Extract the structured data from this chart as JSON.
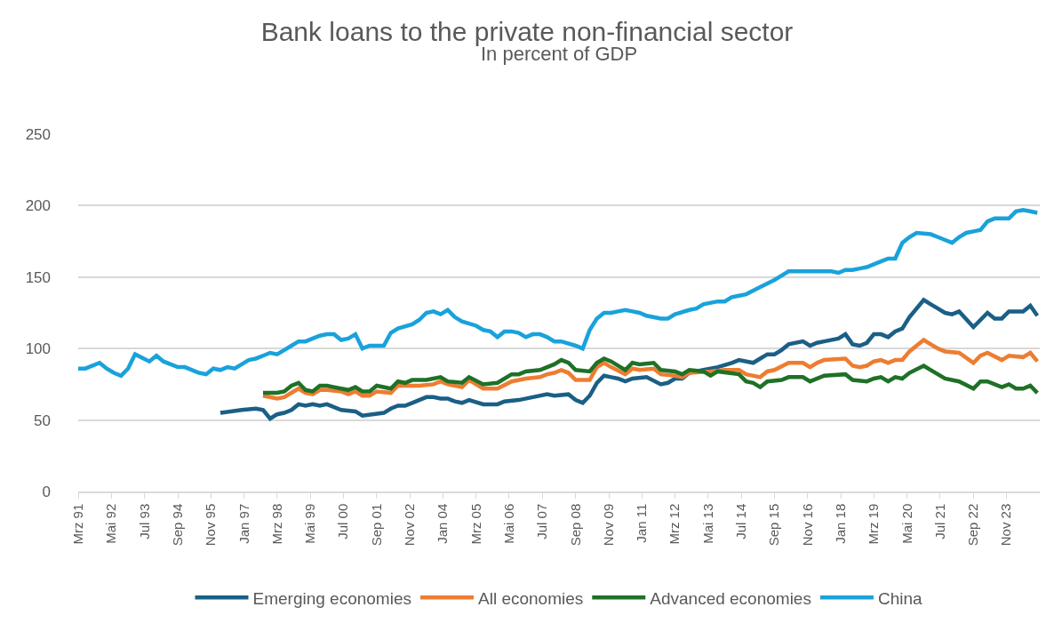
{
  "chart_data": {
    "type": "line",
    "title": "Bank loans to the private non-financial sector",
    "subtitle": "In percent of GDP",
    "xlim": [
      "1991-03",
      "2025-01"
    ],
    "xticks": [
      {
        "value": "1991-03",
        "label": "Mrz 91"
      },
      {
        "value": "1992-05",
        "label": "Mai 92"
      },
      {
        "value": "1993-07",
        "label": "Jul 93"
      },
      {
        "value": "1994-09",
        "label": "Sep 94"
      },
      {
        "value": "1995-11",
        "label": "Nov 95"
      },
      {
        "value": "1997-01",
        "label": "Jan 97"
      },
      {
        "value": "1998-03",
        "label": "Mrz 98"
      },
      {
        "value": "1999-05",
        "label": "Mai 99"
      },
      {
        "value": "2000-07",
        "label": "Jul 00"
      },
      {
        "value": "2001-09",
        "label": "Sep 01"
      },
      {
        "value": "2002-11",
        "label": "Nov 02"
      },
      {
        "value": "2004-01",
        "label": "Jan 04"
      },
      {
        "value": "2005-03",
        "label": "Mrz 05"
      },
      {
        "value": "2006-05",
        "label": "Mai 06"
      },
      {
        "value": "2007-07",
        "label": "Jul 07"
      },
      {
        "value": "2008-09",
        "label": "Sep 08"
      },
      {
        "value": "2009-11",
        "label": "Nov 09"
      },
      {
        "value": "2011-01",
        "label": "Jan 11"
      },
      {
        "value": "2012-03",
        "label": "Mrz 12"
      },
      {
        "value": "2013-05",
        "label": "Mai 13"
      },
      {
        "value": "2014-07",
        "label": "Jul 14"
      },
      {
        "value": "2015-09",
        "label": "Sep 15"
      },
      {
        "value": "2016-11",
        "label": "Nov 16"
      },
      {
        "value": "2018-01",
        "label": "Jan 18"
      },
      {
        "value": "2019-03",
        "label": "Mrz 19"
      },
      {
        "value": "2020-05",
        "label": "Mai 20"
      },
      {
        "value": "2021-07",
        "label": "Jul 21"
      },
      {
        "value": "2022-09",
        "label": "Sep 22"
      },
      {
        "value": "2023-11",
        "label": "Nov 23"
      }
    ],
    "ylim": [
      0,
      250
    ],
    "yticks": [
      0,
      50,
      100,
      150,
      200,
      250
    ],
    "grid": "y",
    "legend": "bottom",
    "marker": "none",
    "line_style": "solid",
    "series": [
      {
        "name": "Emerging economies",
        "color": "#1a5f86",
        "x": [
          "1996-03",
          "1996-12",
          "1997-06",
          "1997-09",
          "1997-12",
          "1998-03",
          "1998-06",
          "1998-09",
          "1998-12",
          "1999-03",
          "1999-06",
          "1999-09",
          "1999-12",
          "2000-06",
          "2000-12",
          "2001-03",
          "2001-12",
          "2002-03",
          "2002-06",
          "2002-09",
          "2002-12",
          "2003-03",
          "2003-06",
          "2003-09",
          "2003-12",
          "2004-03",
          "2004-06",
          "2004-09",
          "2004-12",
          "2005-06",
          "2005-12",
          "2006-03",
          "2006-09",
          "2007-03",
          "2007-09",
          "2007-12",
          "2008-06",
          "2008-09",
          "2008-12",
          "2009-03",
          "2009-06",
          "2009-09",
          "2009-12",
          "2010-03",
          "2010-06",
          "2010-09",
          "2011-03",
          "2011-09",
          "2011-12",
          "2012-03",
          "2012-06",
          "2012-09",
          "2013-03",
          "2013-06",
          "2013-09",
          "2014-03",
          "2014-06",
          "2014-12",
          "2015-03",
          "2015-06",
          "2015-09",
          "2015-12",
          "2016-03",
          "2016-09",
          "2016-12",
          "2017-03",
          "2017-06",
          "2017-12",
          "2018-03",
          "2018-06",
          "2018-09",
          "2018-12",
          "2019-03",
          "2019-06",
          "2019-09",
          "2019-12",
          "2020-03",
          "2020-06",
          "2020-12",
          "2021-03",
          "2021-06",
          "2021-09",
          "2021-12",
          "2022-03",
          "2022-09",
          "2023-03",
          "2023-06",
          "2023-09",
          "2023-12",
          "2024-06",
          "2024-09",
          "2024-12"
        ],
        "values": [
          55,
          57,
          58,
          57,
          51,
          54,
          55,
          57,
          61,
          60,
          61,
          60,
          61,
          57,
          56,
          53,
          55,
          58,
          60,
          60,
          62,
          64,
          66,
          66,
          65,
          65,
          63,
          62,
          64,
          61,
          61,
          63,
          64,
          66,
          68,
          67,
          68,
          64,
          62,
          67,
          76,
          81,
          80,
          79,
          77,
          79,
          80,
          75,
          76,
          79,
          79,
          83,
          85,
          86,
          87,
          90,
          92,
          90,
          93,
          96,
          96,
          99,
          103,
          105,
          102,
          104,
          105,
          107,
          110,
          103,
          102,
          104,
          110,
          110,
          108,
          112,
          114,
          122,
          134,
          131,
          128,
          125,
          124,
          126,
          115,
          125,
          121,
          121,
          126,
          126,
          130,
          123
        ]
      },
      {
        "name": "All economies",
        "color": "#ed7d31",
        "x": [
          "1997-09",
          "1998-03",
          "1998-06",
          "1998-09",
          "1998-12",
          "1999-03",
          "1999-06",
          "1999-09",
          "1999-12",
          "2000-06",
          "2000-09",
          "2000-12",
          "2001-03",
          "2001-06",
          "2001-09",
          "2002-03",
          "2002-06",
          "2002-09",
          "2003-03",
          "2003-09",
          "2003-12",
          "2004-03",
          "2004-09",
          "2004-12",
          "2005-06",
          "2005-12",
          "2006-06",
          "2006-12",
          "2007-06",
          "2007-09",
          "2007-12",
          "2008-03",
          "2008-06",
          "2008-09",
          "2009-03",
          "2009-06",
          "2009-09",
          "2009-12",
          "2010-06",
          "2010-09",
          "2010-12",
          "2011-06",
          "2011-09",
          "2012-03",
          "2012-06",
          "2012-09",
          "2013-06",
          "2013-12",
          "2014-06",
          "2014-09",
          "2015-03",
          "2015-06",
          "2015-09",
          "2016-03",
          "2016-09",
          "2016-12",
          "2017-03",
          "2017-06",
          "2018-03",
          "2018-06",
          "2018-09",
          "2018-12",
          "2019-03",
          "2019-06",
          "2019-09",
          "2019-12",
          "2020-03",
          "2020-06",
          "2020-12",
          "2021-03",
          "2021-06",
          "2021-09",
          "2022-03",
          "2022-09",
          "2022-12",
          "2023-03",
          "2023-09",
          "2023-12",
          "2024-06",
          "2024-09",
          "2024-12"
        ],
        "values": [
          67,
          65,
          66,
          69,
          72,
          69,
          68,
          71,
          71,
          70,
          68,
          70,
          67,
          67,
          70,
          69,
          74,
          74,
          74,
          75,
          77,
          75,
          73,
          78,
          72,
          72,
          77,
          79,
          80,
          82,
          83,
          85,
          83,
          78,
          78,
          87,
          90,
          87,
          82,
          86,
          85,
          86,
          82,
          81,
          80,
          83,
          84,
          85,
          85,
          82,
          80,
          84,
          85,
          90,
          90,
          87,
          90,
          92,
          93,
          88,
          87,
          88,
          91,
          92,
          90,
          92,
          92,
          98,
          106,
          103,
          100,
          98,
          97,
          90,
          95,
          97,
          92,
          95,
          94,
          97,
          91
        ]
      },
      {
        "name": "Advanced economies",
        "color": "#1e7127",
        "x": [
          "1997-09",
          "1998-03",
          "1998-06",
          "1998-09",
          "1998-12",
          "1999-03",
          "1999-06",
          "1999-09",
          "1999-12",
          "2000-03",
          "2000-06",
          "2000-09",
          "2000-12",
          "2001-03",
          "2001-06",
          "2001-09",
          "2002-03",
          "2002-06",
          "2002-09",
          "2002-12",
          "2003-06",
          "2003-12",
          "2004-03",
          "2004-09",
          "2004-12",
          "2005-06",
          "2005-12",
          "2006-06",
          "2006-09",
          "2006-12",
          "2007-06",
          "2007-09",
          "2007-12",
          "2008-03",
          "2008-06",
          "2008-09",
          "2009-03",
          "2009-06",
          "2009-09",
          "2009-12",
          "2010-06",
          "2010-09",
          "2010-12",
          "2011-06",
          "2011-09",
          "2012-03",
          "2012-06",
          "2012-09",
          "2013-03",
          "2013-06",
          "2013-09",
          "2014-06",
          "2014-09",
          "2014-12",
          "2015-03",
          "2015-06",
          "2015-12",
          "2016-03",
          "2016-09",
          "2016-12",
          "2017-06",
          "2018-03",
          "2018-06",
          "2018-12",
          "2019-03",
          "2019-06",
          "2019-09",
          "2019-12",
          "2020-03",
          "2020-06",
          "2020-12",
          "2021-03",
          "2021-09",
          "2022-03",
          "2022-09",
          "2022-12",
          "2023-03",
          "2023-09",
          "2023-12",
          "2024-03",
          "2024-06",
          "2024-09",
          "2024-12"
        ],
        "values": [
          69,
          69,
          70,
          74,
          76,
          71,
          70,
          74,
          74,
          73,
          72,
          71,
          73,
          70,
          70,
          74,
          72,
          77,
          76,
          78,
          78,
          80,
          77,
          76,
          80,
          75,
          76,
          82,
          82,
          84,
          85,
          87,
          89,
          92,
          90,
          85,
          84,
          90,
          93,
          91,
          85,
          90,
          89,
          90,
          85,
          84,
          82,
          85,
          84,
          81,
          84,
          82,
          77,
          76,
          73,
          77,
          78,
          80,
          80,
          77,
          81,
          82,
          78,
          77,
          79,
          80,
          77,
          80,
          79,
          83,
          88,
          85,
          79,
          77,
          72,
          77,
          77,
          73,
          75,
          72,
          72,
          74,
          69
        ]
      },
      {
        "name": "China",
        "color": "#19a2db",
        "x": [
          "1991-03",
          "1991-06",
          "1991-12",
          "1992-03",
          "1992-06",
          "1992-09",
          "1992-12",
          "1993-03",
          "1993-09",
          "1993-12",
          "1994-03",
          "1994-09",
          "1994-12",
          "1995-06",
          "1995-09",
          "1995-12",
          "1996-03",
          "1996-06",
          "1996-09",
          "1996-12",
          "1997-03",
          "1997-06",
          "1997-09",
          "1997-12",
          "1998-03",
          "1998-06",
          "1998-09",
          "1998-12",
          "1999-03",
          "1999-06",
          "1999-09",
          "1999-12",
          "2000-03",
          "2000-06",
          "2000-09",
          "2000-12",
          "2001-03",
          "2001-06",
          "2001-12",
          "2002-03",
          "2002-06",
          "2002-12",
          "2003-03",
          "2003-06",
          "2003-09",
          "2003-12",
          "2004-03",
          "2004-06",
          "2004-09",
          "2005-03",
          "2005-06",
          "2005-09",
          "2005-12",
          "2006-03",
          "2006-06",
          "2006-09",
          "2006-12",
          "2007-03",
          "2007-06",
          "2007-09",
          "2007-12",
          "2008-03",
          "2008-09",
          "2008-12",
          "2009-03",
          "2009-06",
          "2009-09",
          "2009-12",
          "2010-03",
          "2010-06",
          "2010-09",
          "2010-12",
          "2011-03",
          "2011-09",
          "2011-12",
          "2012-03",
          "2012-09",
          "2012-12",
          "2013-03",
          "2013-09",
          "2013-12",
          "2014-03",
          "2014-06",
          "2014-09",
          "2015-03",
          "2015-09",
          "2015-12",
          "2016-03",
          "2016-06",
          "2016-12",
          "2017-09",
          "2017-12",
          "2018-03",
          "2018-06",
          "2018-09",
          "2018-12",
          "2019-03",
          "2019-06",
          "2019-09",
          "2019-12",
          "2020-03",
          "2020-06",
          "2020-09",
          "2021-03",
          "2021-06",
          "2021-09",
          "2021-12",
          "2022-03",
          "2022-06",
          "2022-09",
          "2022-12",
          "2023-03",
          "2023-06",
          "2023-12",
          "2024-03",
          "2024-06",
          "2024-09",
          "2024-12"
        ],
        "values": [
          86,
          86,
          90,
          86,
          83,
          81,
          86,
          96,
          91,
          95,
          91,
          87,
          87,
          83,
          82,
          86,
          85,
          87,
          86,
          89,
          92,
          93,
          95,
          97,
          96,
          99,
          102,
          105,
          105,
          107,
          109,
          110,
          110,
          106,
          107,
          110,
          100,
          102,
          102,
          111,
          114,
          117,
          120,
          125,
          126,
          124,
          127,
          122,
          119,
          116,
          113,
          112,
          108,
          112,
          112,
          111,
          108,
          110,
          110,
          108,
          105,
          105,
          102,
          100,
          113,
          121,
          125,
          125,
          126,
          127,
          126,
          125,
          123,
          121,
          121,
          124,
          127,
          128,
          131,
          133,
          133,
          136,
          137,
          138,
          143,
          148,
          151,
          154,
          154,
          154,
          154,
          153,
          155,
          155,
          156,
          157,
          159,
          161,
          163,
          163,
          174,
          178,
          181,
          180,
          178,
          176,
          174,
          178,
          181,
          182,
          183,
          189,
          191,
          191,
          196,
          197,
          196,
          195
        ]
      }
    ]
  }
}
